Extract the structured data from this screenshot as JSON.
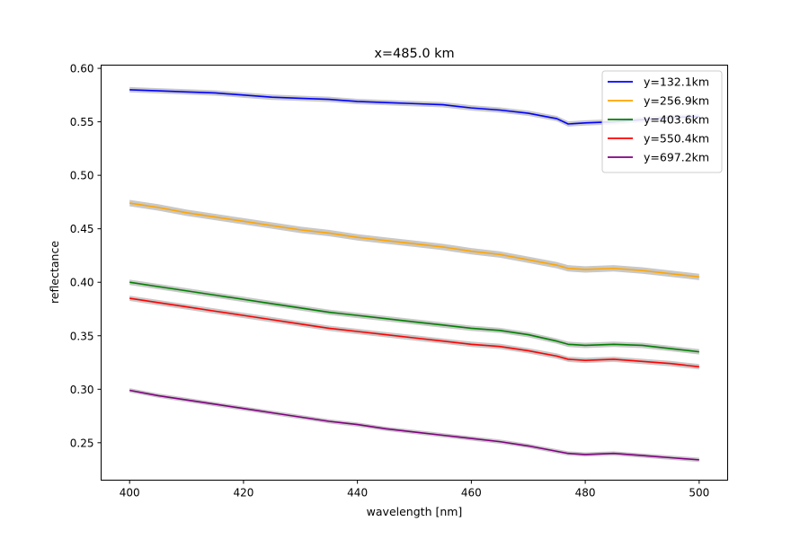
{
  "chart_data": {
    "type": "line",
    "title": "x=485.0 km",
    "xlabel": "wavelength [nm]",
    "ylabel": "reflectance",
    "xlim": [
      395,
      505
    ],
    "ylim": [
      0.215,
      0.603
    ],
    "xticks": [
      400,
      420,
      440,
      460,
      480,
      500
    ],
    "yticks": [
      0.25,
      0.3,
      0.35,
      0.4,
      0.45,
      0.5,
      0.55,
      0.6
    ],
    "xtick_labels": [
      "400",
      "420",
      "440",
      "460",
      "480",
      "500"
    ],
    "ytick_labels": [
      "0.25",
      "0.30",
      "0.35",
      "0.40",
      "0.45",
      "0.50",
      "0.55",
      "0.60"
    ],
    "grid": false,
    "legend_position": "top-right",
    "uncertainty_band": true,
    "band_color": "#c8c8c8",
    "x": [
      400,
      405,
      410,
      415,
      420,
      425,
      430,
      435,
      440,
      445,
      450,
      455,
      460,
      465,
      470,
      475,
      477,
      480,
      485,
      490,
      495,
      500
    ],
    "series": [
      {
        "name": "y=132.1km",
        "color": "#0000ff",
        "band": 0.0025,
        "values": [
          0.58,
          0.579,
          0.578,
          0.577,
          0.575,
          0.573,
          0.572,
          0.571,
          0.569,
          0.568,
          0.567,
          0.566,
          0.563,
          0.561,
          0.558,
          0.553,
          0.548,
          0.549,
          0.55,
          0.552,
          0.554,
          0.555
        ]
      },
      {
        "name": "y=256.9km",
        "color": "#ffa500",
        "band": 0.003,
        "values": [
          0.474,
          0.47,
          0.465,
          0.461,
          0.457,
          0.453,
          0.449,
          0.446,
          0.442,
          0.439,
          0.436,
          0.433,
          0.429,
          0.426,
          0.421,
          0.416,
          0.413,
          0.412,
          0.413,
          0.411,
          0.408,
          0.405
        ]
      },
      {
        "name": "y=403.6km",
        "color": "#008000",
        "band": 0.0025,
        "values": [
          0.4,
          0.396,
          0.392,
          0.388,
          0.384,
          0.38,
          0.376,
          0.372,
          0.369,
          0.366,
          0.363,
          0.36,
          0.357,
          0.355,
          0.351,
          0.345,
          0.342,
          0.341,
          0.342,
          0.341,
          0.338,
          0.335
        ]
      },
      {
        "name": "y=550.4km",
        "color": "#ff0000",
        "band": 0.0025,
        "values": [
          0.385,
          0.381,
          0.377,
          0.373,
          0.369,
          0.365,
          0.361,
          0.357,
          0.354,
          0.351,
          0.348,
          0.345,
          0.342,
          0.34,
          0.336,
          0.331,
          0.328,
          0.327,
          0.328,
          0.326,
          0.324,
          0.321
        ]
      },
      {
        "name": "y=697.2km",
        "color": "#800080",
        "band": 0.002,
        "values": [
          0.299,
          0.294,
          0.29,
          0.286,
          0.282,
          0.278,
          0.274,
          0.27,
          0.267,
          0.263,
          0.26,
          0.257,
          0.254,
          0.251,
          0.247,
          0.242,
          0.24,
          0.239,
          0.24,
          0.238,
          0.236,
          0.234
        ]
      }
    ]
  }
}
